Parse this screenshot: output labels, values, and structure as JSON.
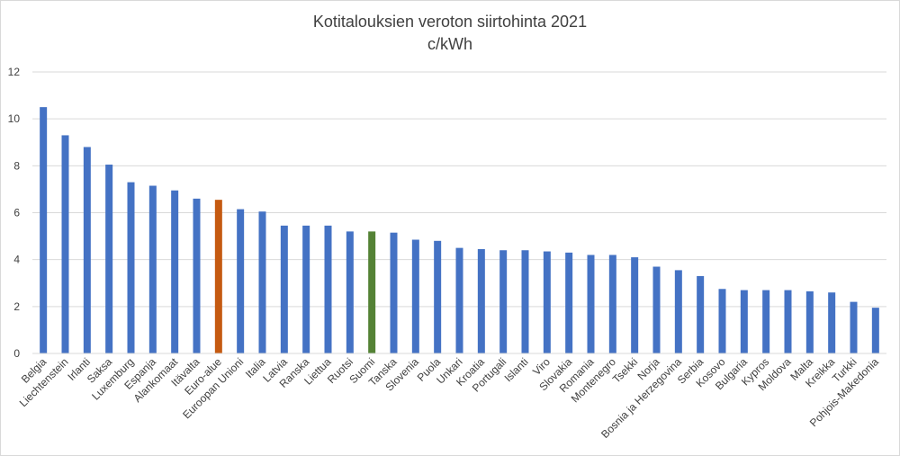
{
  "chart_data": {
    "type": "bar",
    "title": "Kotitalouksien veroton siirtohinta 2021",
    "subtitle": "c/kWh",
    "xlabel": "",
    "ylabel": "",
    "ylim": [
      0,
      12
    ],
    "yticks": [
      0,
      2,
      4,
      6,
      8,
      10,
      12
    ],
    "grid": true,
    "legend": "none",
    "default_color": "#4472c4",
    "highlight_colors": {
      "Euro-alue": "#c55a11",
      "Suomi": "#548235"
    },
    "categories": [
      "Belgia",
      "Liechtenstein",
      "Irlanti",
      "Saksa",
      "Luxemburg",
      "Espanja",
      "Alankomaat",
      "Itävalta",
      "Euro-alue",
      "Euroopan Unioni",
      "Italia",
      "Latvia",
      "Ranska",
      "Liettua",
      "Ruotsi",
      "Suomi",
      "Tanska",
      "Slovenia",
      "Puola",
      "Unkari",
      "Kroatia",
      "Portugali",
      "Islanti",
      "Viro",
      "Slovakia",
      "Romania",
      "Montenegro",
      "Tsekki",
      "Norja",
      "Bosnia ja Herzegovina",
      "Serbia",
      "Kosovo",
      "Bulgaria",
      "Kypros",
      "Moldova",
      "Malta",
      "Kreikka",
      "Turkki",
      "Pohjois-Makedonia"
    ],
    "values": [
      10.5,
      9.3,
      8.8,
      8.05,
      7.3,
      7.15,
      6.95,
      6.6,
      6.55,
      6.15,
      6.05,
      5.45,
      5.45,
      5.45,
      5.2,
      5.2,
      5.15,
      4.85,
      4.8,
      4.5,
      4.45,
      4.4,
      4.4,
      4.35,
      4.3,
      4.2,
      4.2,
      4.1,
      3.7,
      3.55,
      3.3,
      2.75,
      2.7,
      2.7,
      2.7,
      2.65,
      2.6,
      2.2,
      1.95
    ]
  }
}
